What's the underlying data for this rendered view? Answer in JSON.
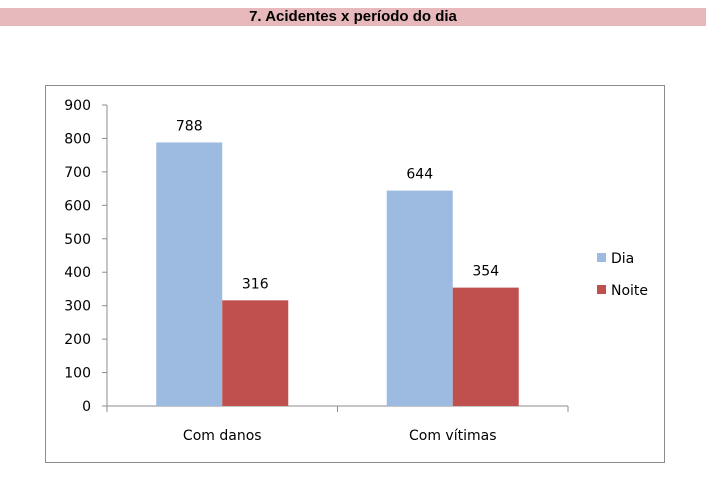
{
  "header": {
    "title": "7. Acidentes x período do dia"
  },
  "chart_data": {
    "type": "bar",
    "title": "",
    "xlabel": "",
    "ylabel": "",
    "categories": [
      "Com danos",
      "Com vítimas"
    ],
    "series": [
      {
        "name": "Dia",
        "values": [
          788,
          644
        ],
        "color": "#9dbae0"
      },
      {
        "name": "Noite",
        "values": [
          316,
          354
        ],
        "color": "#c0504d"
      }
    ],
    "ylim": [
      0,
      900
    ],
    "yticks": [
      0,
      100,
      200,
      300,
      400,
      500,
      600,
      700,
      800,
      900
    ],
    "grid": false,
    "legend_position": "right"
  }
}
